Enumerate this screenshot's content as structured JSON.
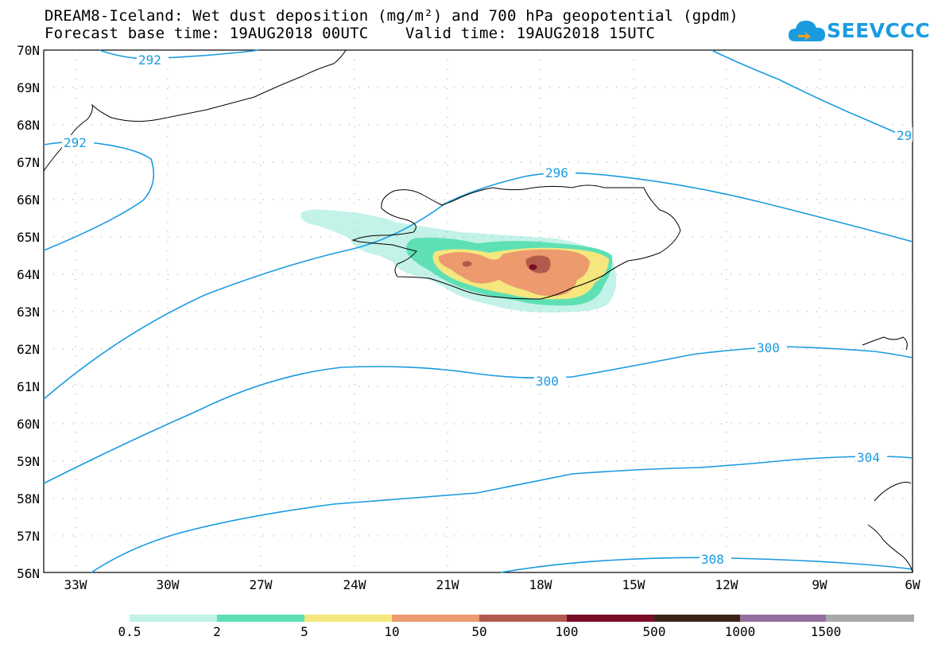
{
  "title": {
    "line1": "DREAM8-Iceland: Wet dust deposition (mg/m²) and 700 hPa geopotential (gpdm)",
    "line2": "Forecast base time: 19AUG2018 00UTC    Valid time: 19AUG2018 15UTC"
  },
  "logo": {
    "text": "SEEVCCC",
    "icon": "cloud-icon"
  },
  "axes": {
    "lat_labels": [
      "70N",
      "69N",
      "68N",
      "67N",
      "66N",
      "65N",
      "64N",
      "63N",
      "62N",
      "61N",
      "60N",
      "59N",
      "58N",
      "57N",
      "56N"
    ],
    "lon_labels": [
      "33W",
      "30W",
      "27W",
      "24W",
      "21W",
      "18W",
      "15W",
      "12W",
      "9W",
      "6W"
    ]
  },
  "contour_labels": [
    "292",
    "292",
    "29",
    "296",
    "300",
    "300",
    "304",
    "308"
  ],
  "legend": {
    "labels": [
      "0.5",
      "2",
      "5",
      "10",
      "50",
      "100",
      "500",
      "1000",
      "1500"
    ],
    "colors": [
      "#c2f2e8",
      "#5ee0b4",
      "#f5e77e",
      "#ec9a6e",
      "#b25a4c",
      "#7a0c28",
      "#3a2418",
      "#946f9d",
      "#a9a9a9"
    ]
  },
  "colors": {
    "contour": "#1a9be0",
    "coast": "#000000"
  }
}
